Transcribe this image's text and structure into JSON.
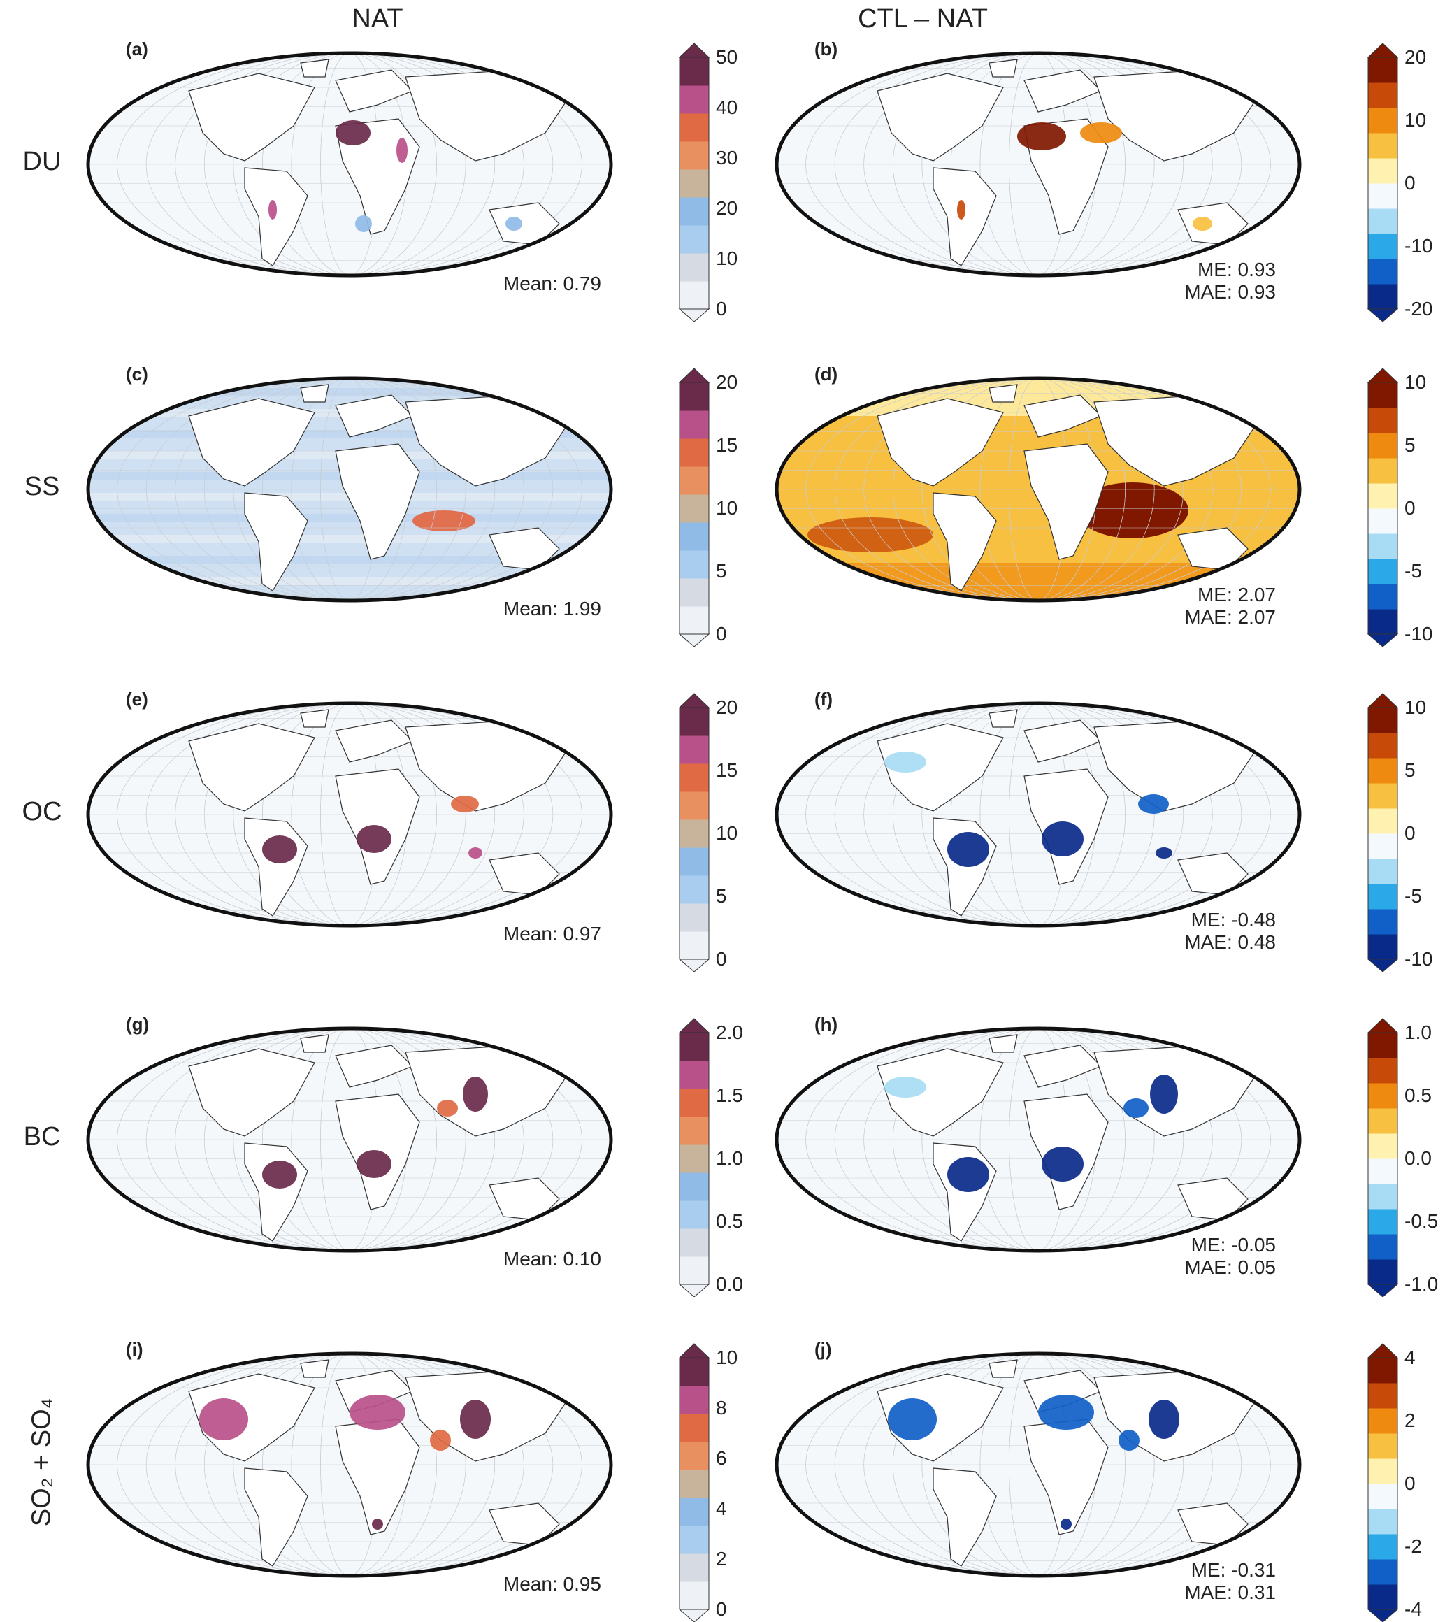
{
  "column_titles": [
    "NAT",
    "CTL – NAT"
  ],
  "rows": [
    {
      "label": "DU",
      "left": {
        "letter": "(a)",
        "mean_text": "Mean: 0.79",
        "ticks": [
          "50",
          "40",
          "30",
          "20",
          "10",
          "0"
        ]
      },
      "right": {
        "letter": "(b)",
        "me_text": "ME: 0.93",
        "mae_text": "MAE: 0.93",
        "ticks": [
          "20",
          "10",
          "0",
          "-10",
          "-20"
        ]
      }
    },
    {
      "label": "SS",
      "left": {
        "letter": "(c)",
        "mean_text": "Mean: 1.99",
        "ticks": [
          "20",
          "15",
          "10",
          "5",
          "0"
        ]
      },
      "right": {
        "letter": "(d)",
        "me_text": "ME: 2.07",
        "mae_text": "MAE: 2.07",
        "ticks": [
          "10",
          "5",
          "0",
          "-5",
          "-10"
        ]
      }
    },
    {
      "label": "OC",
      "left": {
        "letter": "(e)",
        "mean_text": "Mean: 0.97",
        "ticks": [
          "20",
          "15",
          "10",
          "5",
          "0"
        ]
      },
      "right": {
        "letter": "(f)",
        "me_text": "ME: -0.48",
        "mae_text": "MAE: 0.48",
        "ticks": [
          "10",
          "5",
          "0",
          "-5",
          "-10"
        ]
      }
    },
    {
      "label": "BC",
      "left": {
        "letter": "(g)",
        "mean_text": "Mean: 0.10",
        "ticks": [
          "2.0",
          "1.5",
          "1.0",
          "0.5",
          "0.0"
        ]
      },
      "right": {
        "letter": "(h)",
        "me_text": "ME: -0.05",
        "mae_text": "MAE: 0.05",
        "ticks": [
          "1.0",
          "0.5",
          "0.0",
          "-0.5",
          "-1.0"
        ]
      }
    },
    {
      "label": "SO₂ + SO₄",
      "left": {
        "letter": "(i)",
        "mean_text": "Mean: 0.95",
        "ticks": [
          "10",
          "8",
          "6",
          "4",
          "2",
          "0"
        ]
      },
      "right": {
        "letter": "(j)",
        "me_text": "ME: -0.31",
        "mae_text": "MAE: 0.31",
        "ticks": [
          "4",
          "2",
          "0",
          "-2",
          "-4"
        ]
      }
    }
  ],
  "colors": {
    "nat_scale": [
      "#eef1f5",
      "#d6dbe3",
      "#a9cdef",
      "#8fbbe6",
      "#c7b49a",
      "#e89060",
      "#e06a44",
      "#b8508a",
      "#6a2a4a"
    ],
    "diff_scale": [
      "#0a2a8a",
      "#1060c8",
      "#2aa8e8",
      "#a8dcf4",
      "#f4f9fd",
      "#fff2b0",
      "#f8c040",
      "#ee8a10",
      "#c84a08",
      "#801800"
    ],
    "ocean_fill": "#f4f8fb",
    "frame": "#111111"
  }
}
